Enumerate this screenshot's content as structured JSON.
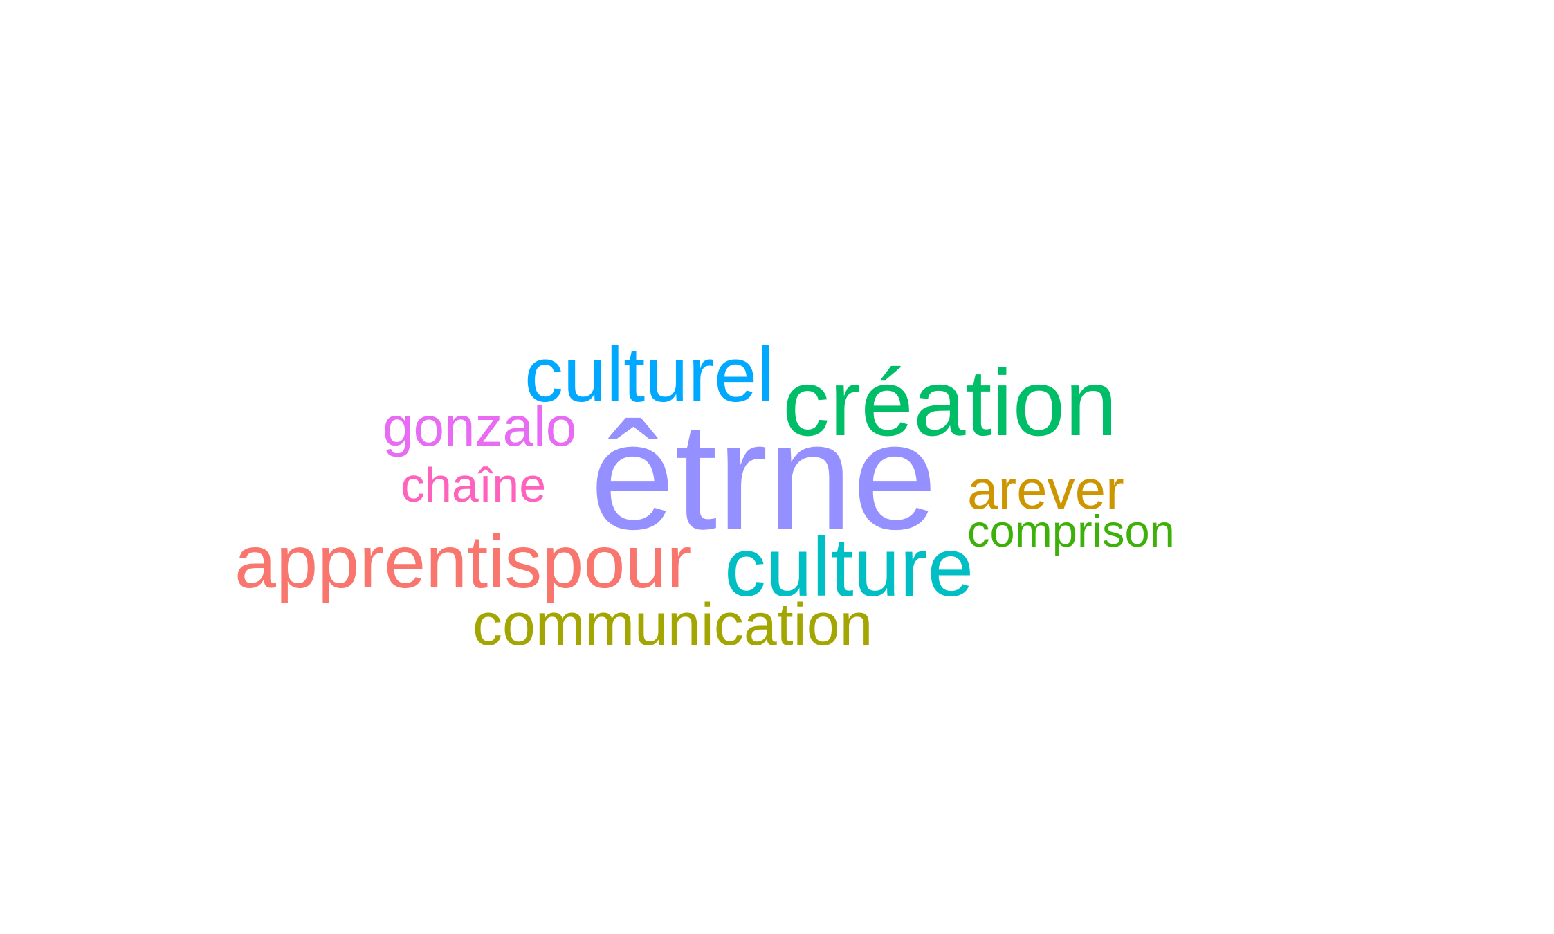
{
  "words": [
    {
      "id": "culturel",
      "text": "culturel",
      "color": "#00A9FF"
    },
    {
      "id": "creation",
      "text": "création",
      "color": "#00BE67"
    },
    {
      "id": "gonzalo",
      "text": "gonzalo",
      "color": "#E76BF3"
    },
    {
      "id": "etrne",
      "text": "êtrne",
      "color": "#9590FF"
    },
    {
      "id": "chaine",
      "text": "chaîne",
      "color": "#FF62BC"
    },
    {
      "id": "arever",
      "text": "arever",
      "color": "#CD9600"
    },
    {
      "id": "comprison",
      "text": "comprison",
      "color": "#3DB10A"
    },
    {
      "id": "apprentispour",
      "text": "apprentispour",
      "color": "#F8766D"
    },
    {
      "id": "culture",
      "text": "culture",
      "color": "#00BFC4"
    },
    {
      "id": "communication",
      "text": "communication",
      "color": "#A3A500"
    }
  ]
}
